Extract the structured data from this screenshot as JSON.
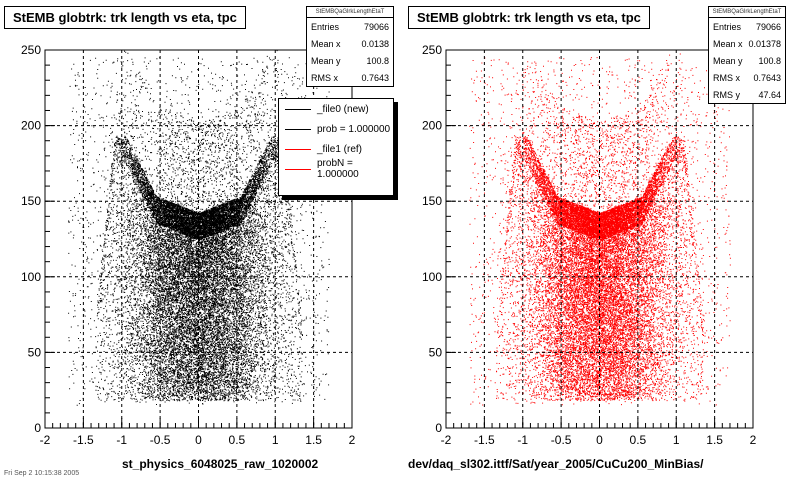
{
  "footer_text": "Fri Sep 2 10:15:38 2005",
  "chart_data": [
    {
      "type": "scatter",
      "title": "StEMB globtrk: trk length vs eta, tpc",
      "xlabel": "st_physics_6048025_raw_1020002",
      "ylabel": "",
      "xlim": [
        -2,
        2
      ],
      "ylim": [
        0,
        250
      ],
      "xticks": [
        "-2",
        "-1.5",
        "-1",
        "-0.5",
        "0",
        "0.5",
        "1",
        "1.5",
        "2"
      ],
      "yticks": [
        "0",
        "50",
        "100",
        "150",
        "200",
        "250"
      ],
      "grid": true,
      "marker_color": "#000000",
      "stats_box": {
        "header": "StEMBQaGlrkLengthEtaT",
        "rows": [
          {
            "label": "Entries",
            "value": "79066"
          },
          {
            "label": "Mean x",
            "value": "0.0138"
          },
          {
            "label": "Mean y",
            "value": "100.8"
          },
          {
            "label": "RMS x",
            "value": "0.7643"
          }
        ]
      },
      "legend": {
        "placement": "top-right",
        "entries": [
          {
            "label": "_file0 (new)",
            "color": "#000000"
          },
          {
            "label": "prob = 1.000000",
            "color": "#000000"
          },
          {
            "label": "_file1 (ref)",
            "color": "#ff0000"
          },
          {
            "label": "probN = 1.000000",
            "color": "#ff0000"
          }
        ]
      },
      "series": [
        {
          "entries": 79066,
          "mean_x": 0.0138,
          "mean_y": 100.8,
          "rms_x": 0.7643
        }
      ]
    },
    {
      "type": "scatter",
      "title": "StEMB globtrk: trk length vs eta, tpc",
      "xlabel": "dev/daq_sl302.ittf/Sat/year_2005/CuCu200_MinBias/",
      "ylabel": "",
      "xlim": [
        -2,
        2
      ],
      "ylim": [
        0,
        250
      ],
      "xticks": [
        "-2",
        "-1.5",
        "-1",
        "-0.5",
        "0",
        "0.5",
        "1",
        "1.5",
        "2"
      ],
      "yticks": [
        "0",
        "50",
        "100",
        "150",
        "200",
        "250"
      ],
      "grid": true,
      "marker_color": "#ff0000",
      "stats_box": {
        "header": "StEMBQaGlrkLengthEtaT",
        "rows": [
          {
            "label": "Entries",
            "value": "79066"
          },
          {
            "label": "Mean x",
            "value": "0.01378"
          },
          {
            "label": "Mean y",
            "value": "100.8"
          },
          {
            "label": "RMS x",
            "value": "0.7643"
          },
          {
            "label": "RMS y",
            "value": "47.64"
          }
        ]
      },
      "series": [
        {
          "entries": 79066,
          "mean_x": 0.01378,
          "mean_y": 100.8,
          "rms_x": 0.7643,
          "rms_y": 47.64
        }
      ]
    }
  ]
}
